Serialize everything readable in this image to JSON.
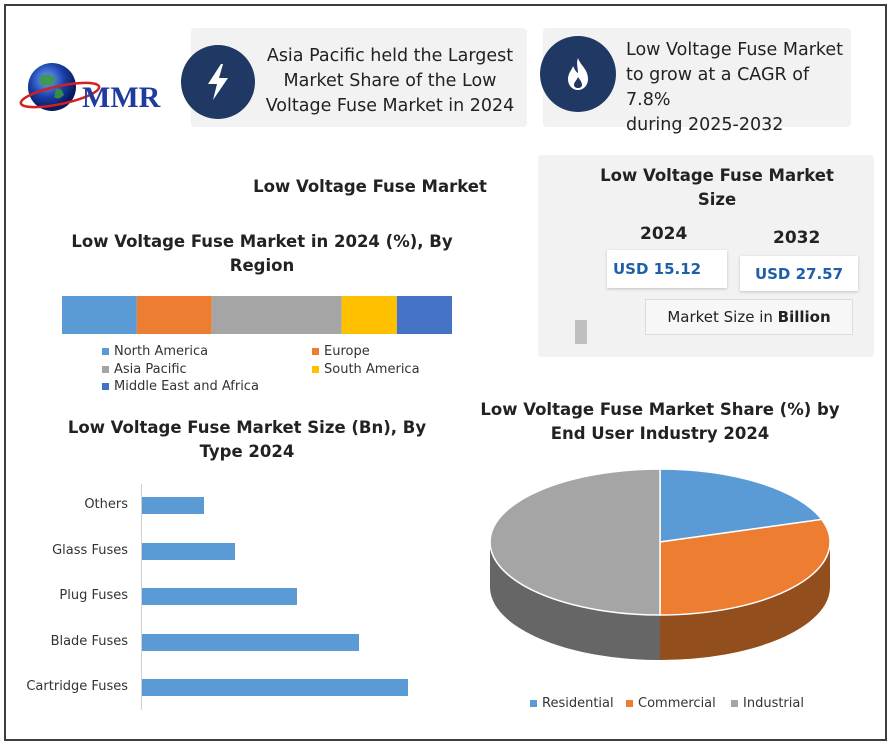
{
  "logo": {
    "text": "MMR"
  },
  "info_cards": [
    {
      "icon": "lightning-bolt-icon",
      "lines": [
        "Asia Pacific held the Largest",
        "Market Share of the Low",
        "Voltage Fuse Market  in 2024"
      ]
    },
    {
      "icon": "flame-icon",
      "lines": [
        "Low Voltage Fuse Market",
        "to grow at a CAGR of 7.8%",
        "during 2025-2032"
      ]
    }
  ],
  "main_title": "Low Voltage Fuse  Market",
  "market_size": {
    "title_line1": "Low Voltage Fuse Market",
    "title_line2": "Size",
    "year1": "2024",
    "value1": "USD 15.12",
    "year2": "2032",
    "value2": "USD 27.57",
    "note_prefix": "Market Size in ",
    "note_bold": "Billion"
  },
  "colors": {
    "north_america": "#5b9bd5",
    "europe": "#ed7d31",
    "asia_pacific": "#a5a5a5",
    "south_america": "#ffc000",
    "mea": "#4472c4",
    "icon_circle": "#1f3864"
  },
  "chart_data": [
    {
      "type": "bar",
      "orientation": "horizontal-stacked",
      "title_line1": "Low Voltage Fuse Market in 2024 (%), By",
      "title_line2": "Region",
      "series": [
        {
          "name": "North America",
          "value": 19
        },
        {
          "name": "Europe",
          "value": 19
        },
        {
          "name": "Asia Pacific",
          "value": 33
        },
        {
          "name": "South America",
          "value": 14
        },
        {
          "name": "Middle East and Africa",
          "value": 14
        }
      ],
      "legend_position": "bottom"
    },
    {
      "type": "bar",
      "orientation": "horizontal",
      "title_line1": "Low Voltage Fuse Market Size (Bn), By",
      "title_line2": "Type 2024",
      "categories": [
        "Others",
        "Glass Fuses",
        "Plug Fuses",
        "Blade Fuses",
        "Cartridge Fuses"
      ],
      "values": [
        1,
        1.5,
        2.5,
        3.5,
        4.3
      ]
    },
    {
      "type": "pie",
      "title_line1": "Low Voltage Fuse Market Share (%) by",
      "title_line2": "End User Industry 2024",
      "categories": [
        "Residential",
        "Commercial",
        "Industrial"
      ],
      "values": [
        20,
        30,
        50
      ],
      "colors": [
        "#5b9bd5",
        "#ed7d31",
        "#a5a5a5"
      ],
      "legend_position": "bottom"
    }
  ]
}
